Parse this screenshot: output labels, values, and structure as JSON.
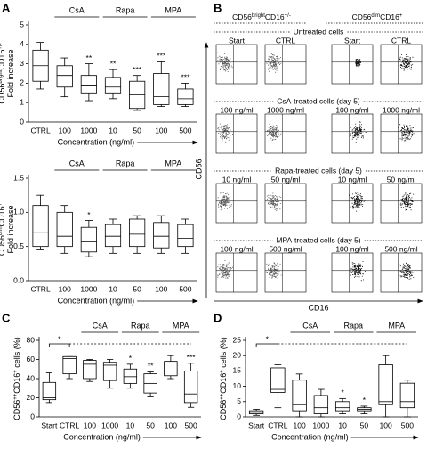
{
  "chart_data": [
    {
      "type": "box",
      "panel": "A",
      "ylabel": {
        "lines": [
          [
            {
              "text": "CD56"
            },
            {
              "text": "bright",
              "sup": true
            },
            {
              "text": "CD16"
            },
            {
              "text": "+/-",
              "sup": true
            }
          ],
          [
            {
              "text": "Fold increase"
            }
          ]
        ]
      },
      "xlabel": "Concentration (ng/ml)",
      "categories": [
        "CTRL",
        "100",
        "1000",
        "10",
        "50",
        "100",
        "500"
      ],
      "group_labels": [
        "CsA",
        "Rapa",
        "MPA"
      ],
      "stats": {
        "min": [
          1.7,
          1.3,
          1.1,
          1.2,
          0.6,
          0.8,
          0.8
        ],
        "q1": [
          2.1,
          1.8,
          1.5,
          1.5,
          0.7,
          0.9,
          0.9
        ],
        "median": [
          2.9,
          2.4,
          1.9,
          1.8,
          1.4,
          1.3,
          1.2
        ],
        "q3": [
          3.7,
          2.9,
          2.4,
          2.3,
          2.1,
          2.5,
          1.7
        ],
        "max": [
          4.1,
          3.3,
          3.0,
          2.7,
          2.4,
          3.1,
          2.0
        ]
      },
      "significance": [
        null,
        null,
        "**",
        "**",
        "***",
        "***",
        "***"
      ],
      "ylim": [
        0,
        5
      ],
      "yticks": [
        0,
        1,
        2,
        3,
        4,
        5
      ]
    },
    {
      "type": "box",
      "ylabel": {
        "lines": [
          [
            {
              "text": "CD56"
            },
            {
              "text": "dim",
              "sup": true
            },
            {
              "text": "CD16"
            },
            {
              "text": "+",
              "sup": true
            }
          ],
          [
            {
              "text": "Fold increase"
            }
          ]
        ]
      },
      "xlabel": "Concentration (ng/ml)",
      "categories": [
        "CTRL",
        "100",
        "1000",
        "10",
        "50",
        "100",
        "500"
      ],
      "group_labels": [
        "CsA",
        "Rapa",
        "MPA"
      ],
      "stats": {
        "min": [
          0.45,
          0.4,
          0.35,
          0.4,
          0.4,
          0.4,
          0.4
        ],
        "q1": [
          0.5,
          0.5,
          0.42,
          0.5,
          0.5,
          0.48,
          0.5
        ],
        "median": [
          0.7,
          0.65,
          0.57,
          0.65,
          0.68,
          0.65,
          0.62
        ],
        "q3": [
          1.1,
          1.0,
          0.78,
          0.82,
          0.9,
          0.85,
          0.82
        ],
        "max": [
          1.25,
          1.1,
          0.88,
          0.9,
          0.95,
          0.95,
          0.9
        ]
      },
      "significance": [
        null,
        null,
        "*",
        null,
        null,
        null,
        null
      ],
      "ylim": [
        0,
        1.5
      ],
      "yticks": [
        {
          "value": 0,
          "label": "0.0"
        },
        0.5,
        {
          "value": 1,
          "label": "1.0"
        },
        1.5
      ]
    },
    {
      "type": "box",
      "panel": "C",
      "ylabel": {
        "lines": [
          [
            {
              "text": "CD56"
            },
            {
              "text": "++",
              "sup": true
            },
            {
              "text": "CD16"
            },
            {
              "text": "+",
              "sup": true
            },
            {
              "text": " cells (%)"
            }
          ]
        ]
      },
      "xlabel": "Concentration (ng/ml)",
      "categories": [
        "Start",
        "CTRL",
        "100",
        "1000",
        "10",
        "50",
        "100",
        "500"
      ],
      "group_labels": [
        "CsA",
        "Rapa",
        "MPA"
      ],
      "bracket_label": "*",
      "stats": {
        "min": [
          15,
          40,
          37,
          30,
          30,
          21,
          40,
          10
        ],
        "q1": [
          18,
          45,
          40,
          38,
          35,
          25,
          43,
          15
        ],
        "median": [
          20,
          61,
          55,
          54,
          42,
          35,
          48,
          24
        ],
        "q3": [
          36,
          63,
          59,
          57,
          50,
          45,
          58,
          48
        ],
        "max": [
          46,
          63,
          60,
          60,
          55,
          47,
          64,
          56
        ]
      },
      "significance": [
        null,
        null,
        null,
        null,
        "*",
        "**",
        null,
        "***"
      ],
      "ylim": [
        0,
        80
      ],
      "yticks": [
        0,
        20,
        40,
        60,
        80
      ]
    },
    {
      "type": "box",
      "panel": "D",
      "ylabel": {
        "lines": [
          [
            {
              "text": "CD56"
            },
            {
              "text": "++",
              "sup": true
            },
            {
              "text": "CD16"
            },
            {
              "text": "+",
              "sup": true
            },
            {
              "text": " cells (%)"
            }
          ]
        ]
      },
      "xlabel": "Concentration (ng/ml)",
      "categories": [
        "Start",
        "CTRL",
        "100",
        "1000",
        "10",
        "50",
        "100",
        "500"
      ],
      "group_labels": [
        "CsA",
        "Rapa",
        "MPA"
      ],
      "bracket_label": "*",
      "stats": {
        "min": [
          0.5,
          3,
          0,
          0,
          1,
          1,
          0,
          0
        ],
        "q1": [
          1,
          8,
          2,
          1,
          2,
          2,
          4,
          3
        ],
        "median": [
          1.5,
          9,
          4,
          3,
          3,
          2.5,
          5,
          5
        ],
        "q3": [
          2,
          16,
          12,
          7,
          5,
          3,
          17,
          11
        ],
        "max": [
          2.5,
          17,
          14,
          9,
          6,
          3.5,
          20,
          12
        ]
      },
      "significance": [
        null,
        null,
        null,
        null,
        "*",
        "*",
        null,
        null
      ],
      "ylim": [
        0,
        25
      ],
      "yticks": [
        0,
        5,
        10,
        15,
        20,
        25
      ]
    }
  ],
  "panel_b": {
    "letter": "B",
    "headers": [
      [
        {
          "text": "CD56"
        },
        {
          "text": "bright",
          "sup": true
        },
        {
          "text": "CD16"
        },
        {
          "text": "+/-",
          "sup": true
        }
      ],
      [
        {
          "text": "CD56"
        },
        {
          "text": "dim",
          "sup": true
        },
        {
          "text": "CD16"
        },
        {
          "text": "+",
          "sup": true
        }
      ]
    ],
    "rows": [
      {
        "title": "Untreated cells",
        "labels": [
          "Start",
          "CTRL",
          "Start",
          "CTRL"
        ]
      },
      {
        "title": "CsA-treated cells (day 5)",
        "labels": [
          "100 ng/ml",
          "1000 ng/ml",
          "100 ng/ml",
          "1000 ng/ml"
        ]
      },
      {
        "title": "Rapa-treated cells (day 5)",
        "labels": [
          "10 ng/ml",
          "50 ng/ml",
          "10 ng/ml",
          "50 ng/ml"
        ]
      },
      {
        "title": "MPA-treated cells (day 5)",
        "labels": [
          "100 ng/ml",
          "500 ng/ml",
          "100 ng/ml",
          "500 ng/ml"
        ]
      }
    ],
    "yaxis": "CD56",
    "xaxis": "CD16"
  }
}
